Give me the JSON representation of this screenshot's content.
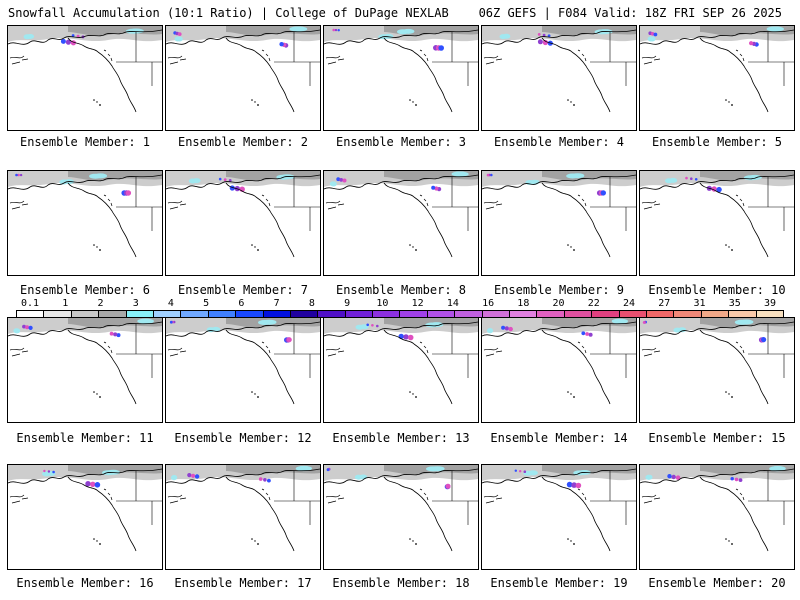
{
  "header": {
    "left_title": "Snowfall Accumulation (10:1 Ratio) | College of DuPage NEXLAB",
    "right_title": "06Z GEFS | F084 Valid: 18Z FRI SEP 26 2025"
  },
  "panels": [
    {
      "caption": "Ensemble Member: 1"
    },
    {
      "caption": "Ensemble Member: 2"
    },
    {
      "caption": "Ensemble Member: 3"
    },
    {
      "caption": "Ensemble Member: 4"
    },
    {
      "caption": "Ensemble Member: 5"
    },
    {
      "caption": "Ensemble Member: 6"
    },
    {
      "caption": "Ensemble Member: 7"
    },
    {
      "caption": "Ensemble Member: 8"
    },
    {
      "caption": "Ensemble Member: 9"
    },
    {
      "caption": "Ensemble Member: 10"
    },
    {
      "caption": "Ensemble Member: 11"
    },
    {
      "caption": "Ensemble Member: 12"
    },
    {
      "caption": "Ensemble Member: 13"
    },
    {
      "caption": "Ensemble Member: 14"
    },
    {
      "caption": "Ensemble Member: 15"
    },
    {
      "caption": "Ensemble Member: 16"
    },
    {
      "caption": "Ensemble Member: 17"
    },
    {
      "caption": "Ensemble Member: 18"
    },
    {
      "caption": "Ensemble Member: 19"
    },
    {
      "caption": "Ensemble Member: 20"
    }
  ],
  "colorbar": {
    "labels": [
      "0.1",
      "1",
      "2",
      "3",
      "4",
      "5",
      "6",
      "7",
      "8",
      "9",
      "10",
      "12",
      "14",
      "16",
      "18",
      "20",
      "22",
      "24",
      "27",
      "31",
      "35",
      "39"
    ],
    "colors": [
      "#ffffff",
      "#e8e8e8",
      "#c8c8c8",
      "#a8a8a8",
      "#88f0f8",
      "#a0d0ff",
      "#70a8ff",
      "#4080ff",
      "#1848ff",
      "#0010e0",
      "#2000a0",
      "#5010c8",
      "#7020d8",
      "#8c30e0",
      "#a040e8",
      "#b050e8",
      "#c060e0",
      "#d070d8",
      "#e080e0",
      "#e060c0",
      "#e050a0",
      "#e04080",
      "#e85070",
      "#f06868",
      "#f08878",
      "#f0a888",
      "#f8c8a8",
      "#f8e0c0"
    ]
  },
  "map_colors": {
    "coast": "#000000",
    "light_snow": "#c8c8c8",
    "medium_snow": "#909090",
    "cyan_snow": "#a0e8f0",
    "blue_snow": "#3050ff",
    "purple_snow": "#9040d0",
    "magenta_snow": "#e050c0"
  }
}
